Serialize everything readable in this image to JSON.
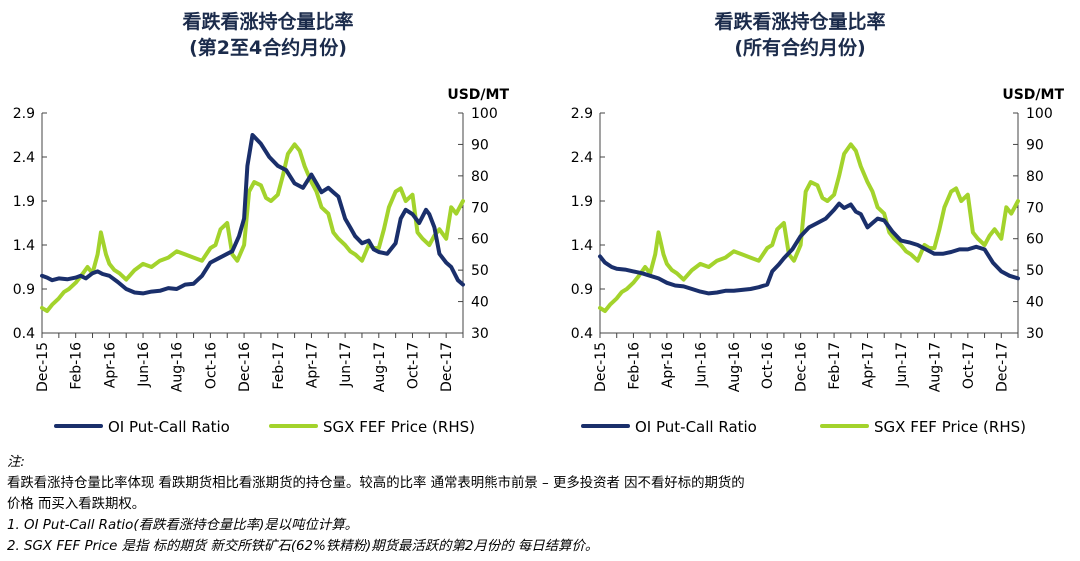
{
  "chart_data": [
    {
      "type": "line",
      "title": "看跌看涨持仓量比率",
      "subtitle": "(第2至4合约月份)",
      "right_axis_unit": "USD/MT",
      "x_tick_labels": [
        "Dec-15",
        "Feb-16",
        "Apr-16",
        "Jun-16",
        "Aug-16",
        "Oct-16",
        "Dec-16",
        "Feb-17",
        "Apr-17",
        "Jun-17",
        "Aug-17",
        "Oct-17",
        "Dec-17"
      ],
      "x_range": [
        0,
        25
      ],
      "y_left": {
        "range": [
          0.4,
          2.9
        ],
        "ticks": [
          "0.4",
          "0.9",
          "1.4",
          "1.9",
          "2.4",
          "2.9"
        ]
      },
      "y_right": {
        "range": [
          30,
          100
        ],
        "ticks": [
          "30",
          "40",
          "50",
          "60",
          "70",
          "80",
          "90",
          "100"
        ]
      },
      "legend_position": "bottom",
      "series": [
        {
          "name": "OI Put-Call Ratio",
          "axis": "left",
          "color": "#1a2f6b",
          "x": [
            0,
            0.3,
            0.6,
            1,
            1.5,
            2,
            2.3,
            2.6,
            3,
            3.3,
            3.6,
            4,
            4.5,
            5,
            5.5,
            6,
            6.5,
            7,
            7.5,
            8,
            8.5,
            9,
            9.5,
            10,
            10.5,
            11,
            11.3,
            11.7,
            12,
            12.2,
            12.5,
            13,
            13.5,
            14,
            14.5,
            15,
            15.5,
            16,
            16.3,
            16.6,
            17,
            17.3,
            17.6,
            18,
            18.3,
            18.6,
            19,
            19.4,
            19.7,
            20,
            20.5,
            21,
            21.3,
            21.6,
            22,
            22.4,
            22.8,
            23,
            23.3,
            23.6,
            24,
            24.3,
            24.7,
            25
          ],
          "y": [
            1.05,
            1.03,
            1.0,
            1.02,
            1.01,
            1.03,
            1.05,
            1.02,
            1.08,
            1.1,
            1.07,
            1.05,
            0.98,
            0.9,
            0.86,
            0.85,
            0.87,
            0.88,
            0.91,
            0.9,
            0.95,
            0.96,
            1.05,
            1.2,
            1.25,
            1.3,
            1.33,
            1.5,
            1.7,
            2.3,
            2.65,
            2.55,
            2.4,
            2.3,
            2.25,
            2.1,
            2.05,
            2.2,
            2.1,
            2.0,
            2.05,
            2.0,
            1.95,
            1.7,
            1.6,
            1.5,
            1.42,
            1.45,
            1.35,
            1.32,
            1.3,
            1.42,
            1.7,
            1.8,
            1.75,
            1.65,
            1.8,
            1.75,
            1.6,
            1.3,
            1.2,
            1.15,
            1.0,
            0.95
          ]
        },
        {
          "name": "SGX FEF Price (RHS)",
          "axis": "right",
          "color": "#a3d32c",
          "x": [
            0,
            0.3,
            0.6,
            1,
            1.3,
            1.6,
            2,
            2.3,
            2.7,
            3,
            3.3,
            3.5,
            3.8,
            4,
            4.3,
            4.6,
            5,
            5.5,
            6,
            6.5,
            7,
            7.5,
            8,
            8.5,
            9,
            9.5,
            10,
            10.3,
            10.6,
            11,
            11.3,
            11.6,
            12,
            12.3,
            12.6,
            13,
            13.3,
            13.6,
            14,
            14.3,
            14.6,
            15,
            15.3,
            15.6,
            16,
            16.3,
            16.6,
            17,
            17.3,
            17.6,
            18,
            18.3,
            18.6,
            19,
            19.4,
            19.7,
            20,
            20.3,
            20.6,
            21,
            21.3,
            21.6,
            22,
            22.3,
            22.6,
            23,
            23.3,
            23.6,
            24,
            24.3,
            24.6,
            25
          ],
          "y": [
            38,
            37,
            39,
            41,
            43,
            44,
            46,
            48,
            51,
            49,
            55,
            62,
            55,
            52,
            50,
            49,
            47,
            50,
            52,
            51,
            53,
            54,
            56,
            55,
            54,
            53,
            57,
            58,
            63,
            65,
            55,
            53,
            58,
            75,
            78,
            77,
            73,
            72,
            74,
            80,
            87,
            90,
            88,
            83,
            78,
            75,
            70,
            68,
            62,
            60,
            58,
            56,
            55,
            53,
            58,
            57,
            57,
            63,
            70,
            75,
            76,
            72,
            74,
            62,
            60,
            58,
            61,
            63,
            60,
            70,
            68,
            72
          ]
        }
      ]
    },
    {
      "type": "line",
      "title": "看跌看涨持仓量比率",
      "subtitle": "(所有合约月份)",
      "right_axis_unit": "USD/MT",
      "x_tick_labels": [
        "Dec-15",
        "Feb-16",
        "Apr-16",
        "Jun-16",
        "Aug-16",
        "Oct-16",
        "Dec-16",
        "Feb-17",
        "Apr-17",
        "Jun-17",
        "Aug-17",
        "Oct-17",
        "Dec-17"
      ],
      "x_range": [
        0,
        25
      ],
      "y_left": {
        "range": [
          0.4,
          2.9
        ],
        "ticks": [
          "0.4",
          "0.9",
          "1.4",
          "1.9",
          "2.4",
          "2.9"
        ]
      },
      "y_right": {
        "range": [
          30,
          100
        ],
        "ticks": [
          "30",
          "40",
          "50",
          "60",
          "70",
          "80",
          "90",
          "100"
        ]
      },
      "legend_position": "bottom",
      "series": [
        {
          "name": "OI Put-Call Ratio",
          "axis": "left",
          "color": "#1a2f6b",
          "x": [
            0,
            0.3,
            0.7,
            1,
            1.5,
            2,
            2.5,
            3,
            3.5,
            4,
            4.5,
            5,
            5.5,
            6,
            6.5,
            7,
            7.5,
            8,
            8.5,
            9,
            9.5,
            10,
            10.3,
            10.7,
            11,
            11.5,
            12,
            12.5,
            13,
            13.5,
            14,
            14.3,
            14.6,
            15,
            15.3,
            15.6,
            16,
            16.3,
            16.6,
            17,
            17.5,
            18,
            18.5,
            19,
            19.5,
            20,
            20.5,
            21,
            21.5,
            22,
            22.5,
            23,
            23.5,
            24,
            24.5,
            25
          ],
          "y": [
            1.27,
            1.2,
            1.15,
            1.13,
            1.12,
            1.1,
            1.08,
            1.05,
            1.02,
            0.97,
            0.94,
            0.93,
            0.9,
            0.87,
            0.85,
            0.86,
            0.88,
            0.88,
            0.89,
            0.9,
            0.92,
            0.95,
            1.1,
            1.18,
            1.25,
            1.35,
            1.5,
            1.6,
            1.65,
            1.7,
            1.8,
            1.87,
            1.82,
            1.86,
            1.78,
            1.75,
            1.6,
            1.65,
            1.7,
            1.68,
            1.55,
            1.45,
            1.43,
            1.4,
            1.35,
            1.3,
            1.3,
            1.32,
            1.35,
            1.35,
            1.38,
            1.35,
            1.2,
            1.1,
            1.05,
            1.02
          ]
        },
        {
          "name": "SGX FEF Price (RHS)",
          "axis": "right",
          "color": "#a3d32c",
          "x": [
            0,
            0.3,
            0.6,
            1,
            1.3,
            1.6,
            2,
            2.3,
            2.7,
            3,
            3.3,
            3.5,
            3.8,
            4,
            4.3,
            4.6,
            5,
            5.5,
            6,
            6.5,
            7,
            7.5,
            8,
            8.5,
            9,
            9.5,
            10,
            10.3,
            10.6,
            11,
            11.3,
            11.6,
            12,
            12.3,
            12.6,
            13,
            13.3,
            13.6,
            14,
            14.3,
            14.6,
            15,
            15.3,
            15.6,
            16,
            16.3,
            16.6,
            17,
            17.3,
            17.6,
            18,
            18.3,
            18.6,
            19,
            19.4,
            19.7,
            20,
            20.3,
            20.6,
            21,
            21.3,
            21.6,
            22,
            22.3,
            22.6,
            23,
            23.3,
            23.6,
            24,
            24.3,
            24.6,
            25
          ],
          "y": [
            38,
            37,
            39,
            41,
            43,
            44,
            46,
            48,
            51,
            49,
            55,
            62,
            55,
            52,
            50,
            49,
            47,
            50,
            52,
            51,
            53,
            54,
            56,
            55,
            54,
            53,
            57,
            58,
            63,
            65,
            55,
            53,
            58,
            75,
            78,
            77,
            73,
            72,
            74,
            80,
            87,
            90,
            88,
            83,
            78,
            75,
            70,
            68,
            62,
            60,
            58,
            56,
            55,
            53,
            58,
            57,
            57,
            63,
            70,
            75,
            76,
            72,
            74,
            62,
            60,
            58,
            61,
            63,
            60,
            70,
            68,
            72
          ]
        }
      ]
    }
  ],
  "notes": {
    "heading": "注:",
    "lines": [
      "看跌看涨持仓量比率体现 看跌期货相比看涨期货的持仓量。较高的比率 通常表明熊市前景 – 更多投资者 因不看好标的期货的",
      "价格 而买入看跌期权。"
    ],
    "items": [
      "1.   OI Put-Call Ratio(看跌看涨持仓量比率)是以吨位计算。",
      "2.   SGX FEF Price 是指 标的期货 新交所铁矿石(62%铁精粉)期货最活跃的第2月份的 每日结算价。"
    ]
  }
}
